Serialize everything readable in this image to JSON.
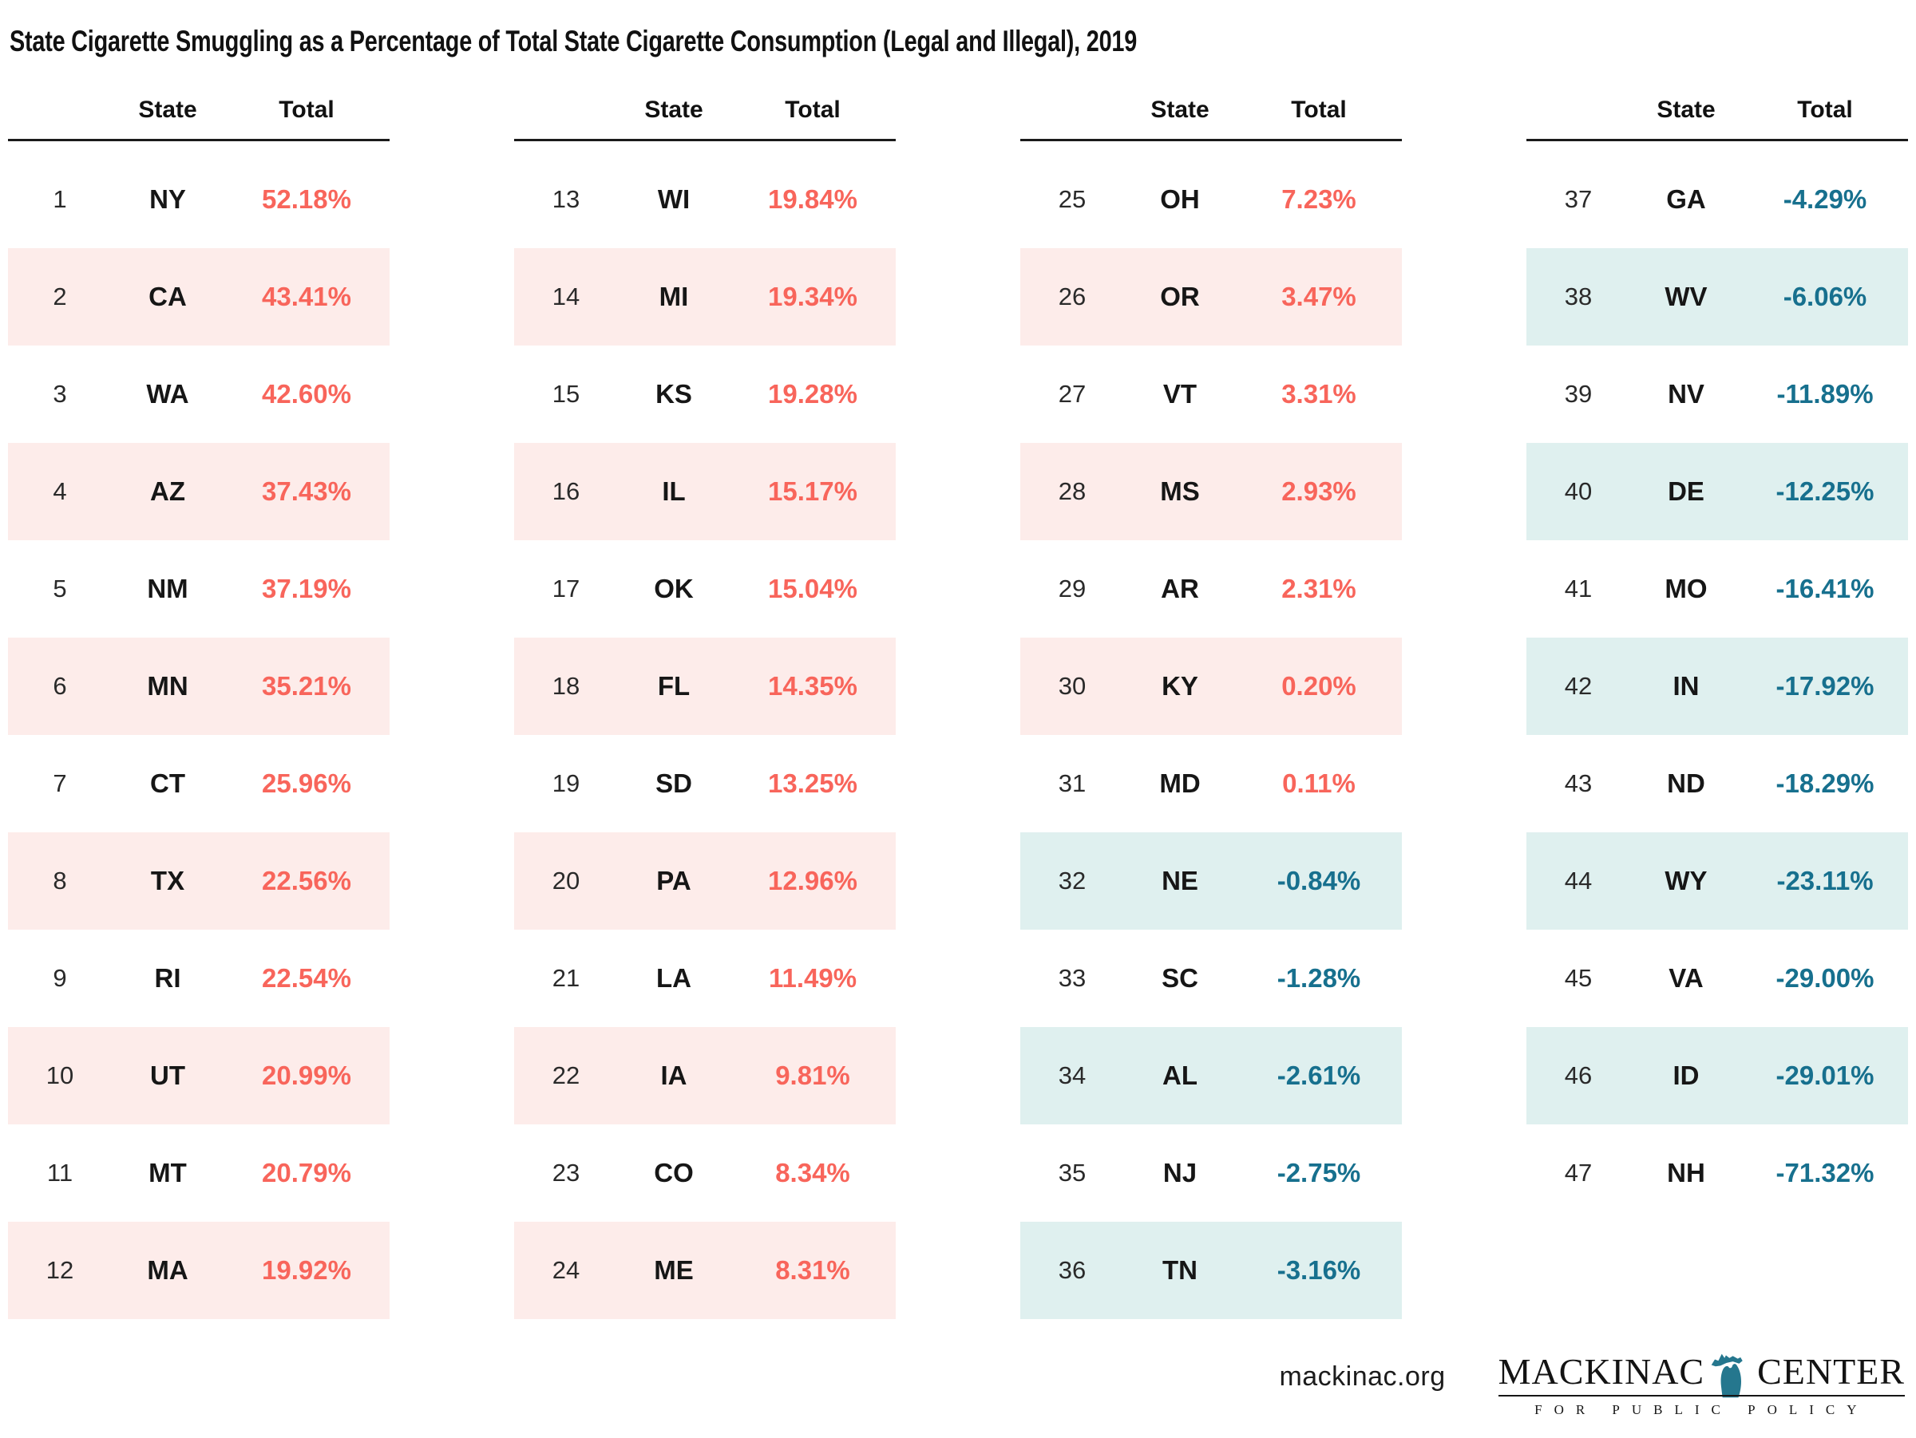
{
  "title": "State Cigarette Smuggling as a Percentage of Total State Cigarette Consumption (Legal and Illegal), 2019",
  "table": {
    "state_header": "State",
    "total_header": "Total",
    "columns": [
      {
        "rows": [
          {
            "rank": "1",
            "state": "NY",
            "total": "52.18%"
          },
          {
            "rank": "2",
            "state": "CA",
            "total": "43.41%"
          },
          {
            "rank": "3",
            "state": "WA",
            "total": "42.60%"
          },
          {
            "rank": "4",
            "state": "AZ",
            "total": "37.43%"
          },
          {
            "rank": "5",
            "state": "NM",
            "total": "37.19%"
          },
          {
            "rank": "6",
            "state": "MN",
            "total": "35.21%"
          },
          {
            "rank": "7",
            "state": "CT",
            "total": "25.96%"
          },
          {
            "rank": "8",
            "state": "TX",
            "total": "22.56%"
          },
          {
            "rank": "9",
            "state": "RI",
            "total": "22.54%"
          },
          {
            "rank": "10",
            "state": "UT",
            "total": "20.99%"
          },
          {
            "rank": "11",
            "state": "MT",
            "total": "20.79%"
          },
          {
            "rank": "12",
            "state": "MA",
            "total": "19.92%"
          }
        ]
      },
      {
        "rows": [
          {
            "rank": "13",
            "state": "WI",
            "total": "19.84%"
          },
          {
            "rank": "14",
            "state": "MI",
            "total": "19.34%"
          },
          {
            "rank": "15",
            "state": "KS",
            "total": "19.28%"
          },
          {
            "rank": "16",
            "state": "IL",
            "total": "15.17%"
          },
          {
            "rank": "17",
            "state": "OK",
            "total": "15.04%"
          },
          {
            "rank": "18",
            "state": "FL",
            "total": "14.35%"
          },
          {
            "rank": "19",
            "state": "SD",
            "total": "13.25%"
          },
          {
            "rank": "20",
            "state": "PA",
            "total": "12.96%"
          },
          {
            "rank": "21",
            "state": "LA",
            "total": "11.49%"
          },
          {
            "rank": "22",
            "state": "IA",
            "total": "9.81%"
          },
          {
            "rank": "23",
            "state": "CO",
            "total": "8.34%"
          },
          {
            "rank": "24",
            "state": "ME",
            "total": "8.31%"
          }
        ]
      },
      {
        "rows": [
          {
            "rank": "25",
            "state": "OH",
            "total": "7.23%"
          },
          {
            "rank": "26",
            "state": "OR",
            "total": "3.47%"
          },
          {
            "rank": "27",
            "state": "VT",
            "total": "3.31%"
          },
          {
            "rank": "28",
            "state": "MS",
            "total": "2.93%"
          },
          {
            "rank": "29",
            "state": "AR",
            "total": "2.31%"
          },
          {
            "rank": "30",
            "state": "KY",
            "total": "0.20%"
          },
          {
            "rank": "31",
            "state": "MD",
            "total": "0.11%"
          },
          {
            "rank": "32",
            "state": "NE",
            "total": "-0.84%"
          },
          {
            "rank": "33",
            "state": "SC",
            "total": "-1.28%"
          },
          {
            "rank": "34",
            "state": "AL",
            "total": "-2.61%"
          },
          {
            "rank": "35",
            "state": "NJ",
            "total": "-2.75%"
          },
          {
            "rank": "36",
            "state": "TN",
            "total": "-3.16%"
          }
        ]
      },
      {
        "rows": [
          {
            "rank": "37",
            "state": "GA",
            "total": "-4.29%"
          },
          {
            "rank": "38",
            "state": "WV",
            "total": "-6.06%"
          },
          {
            "rank": "39",
            "state": "NV",
            "total": "-11.89%"
          },
          {
            "rank": "40",
            "state": "DE",
            "total": "-12.25%"
          },
          {
            "rank": "41",
            "state": "MO",
            "total": "-16.41%"
          },
          {
            "rank": "42",
            "state": "IN",
            "total": "-17.92%"
          },
          {
            "rank": "43",
            "state": "ND",
            "total": "-18.29%"
          },
          {
            "rank": "44",
            "state": "WY",
            "total": "-23.11%"
          },
          {
            "rank": "45",
            "state": "VA",
            "total": "-29.00%"
          },
          {
            "rank": "46",
            "state": "ID",
            "total": "-29.01%"
          },
          {
            "rank": "47",
            "state": "NH",
            "total": "-71.32%"
          }
        ]
      }
    ]
  },
  "footer": {
    "website": "mackinac.org",
    "logo_word1": "MACKINAC",
    "logo_word2": "CENTER",
    "logo_tagline": "FOR PUBLIC POLICY"
  },
  "colors": {
    "positive_text": "#f8655b",
    "negative_text": "#17708e",
    "positive_row_bg": "#fdecea",
    "negative_row_bg": "#dff0ef",
    "logo_michigan": "#25778e"
  },
  "chart_data": {
    "type": "table",
    "title": "State Cigarette Smuggling as a Percentage of Total State Cigarette Consumption (Legal and Illegal), 2019",
    "column_headers": [
      "",
      "State",
      "Total"
    ],
    "rows": [
      [
        1,
        "NY",
        "52.18%"
      ],
      [
        2,
        "CA",
        "43.41%"
      ],
      [
        3,
        "WA",
        "42.60%"
      ],
      [
        4,
        "AZ",
        "37.43%"
      ],
      [
        5,
        "NM",
        "37.19%"
      ],
      [
        6,
        "MN",
        "35.21%"
      ],
      [
        7,
        "CT",
        "25.96%"
      ],
      [
        8,
        "TX",
        "22.56%"
      ],
      [
        9,
        "RI",
        "22.54%"
      ],
      [
        10,
        "UT",
        "20.99%"
      ],
      [
        11,
        "MT",
        "20.79%"
      ],
      [
        12,
        "MA",
        "19.92%"
      ],
      [
        13,
        "WI",
        "19.84%"
      ],
      [
        14,
        "MI",
        "19.34%"
      ],
      [
        15,
        "KS",
        "19.28%"
      ],
      [
        16,
        "IL",
        "15.17%"
      ],
      [
        17,
        "OK",
        "15.04%"
      ],
      [
        18,
        "FL",
        "14.35%"
      ],
      [
        19,
        "SD",
        "13.25%"
      ],
      [
        20,
        "PA",
        "12.96%"
      ],
      [
        21,
        "LA",
        "11.49%"
      ],
      [
        22,
        "IA",
        "9.81%"
      ],
      [
        23,
        "CO",
        "8.34%"
      ],
      [
        24,
        "ME",
        "8.31%"
      ],
      [
        25,
        "OH",
        "7.23%"
      ],
      [
        26,
        "OR",
        "3.47%"
      ],
      [
        27,
        "VT",
        "3.31%"
      ],
      [
        28,
        "MS",
        "2.93%"
      ],
      [
        29,
        "AR",
        "2.31%"
      ],
      [
        30,
        "KY",
        "0.20%"
      ],
      [
        31,
        "MD",
        "0.11%"
      ],
      [
        32,
        "NE",
        "-0.84%"
      ],
      [
        33,
        "SC",
        "-1.28%"
      ],
      [
        34,
        "AL",
        "-2.61%"
      ],
      [
        35,
        "NJ",
        "-2.75%"
      ],
      [
        36,
        "TN",
        "-3.16%"
      ],
      [
        37,
        "GA",
        "-4.29%"
      ],
      [
        38,
        "WV",
        "-6.06%"
      ],
      [
        39,
        "NV",
        "-11.89%"
      ],
      [
        40,
        "DE",
        "-12.25%"
      ],
      [
        41,
        "MO",
        "-16.41%"
      ],
      [
        42,
        "IN",
        "-17.92%"
      ],
      [
        43,
        "ND",
        "-18.29%"
      ],
      [
        44,
        "WY",
        "-23.11%"
      ],
      [
        45,
        "VA",
        "-29.00%"
      ],
      [
        46,
        "ID",
        "-29.01%"
      ],
      [
        47,
        "NH",
        "-71.32%"
      ]
    ],
    "notes": "Positive values shown in red, negative values in teal; alternating rows tinted to match value sign"
  }
}
